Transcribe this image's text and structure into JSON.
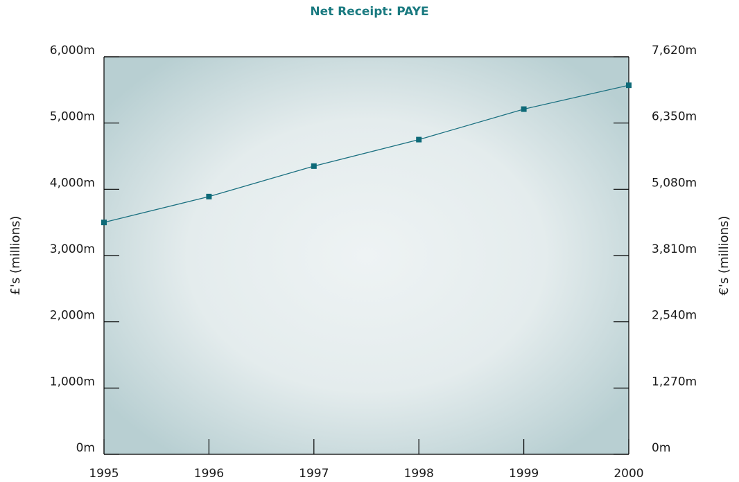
{
  "chart_data": {
    "type": "line",
    "title": "Net Receipt: PAYE",
    "x": [
      "1995",
      "1996",
      "1997",
      "1998",
      "1999",
      "2000"
    ],
    "series": [
      {
        "values": [
          3500,
          3890,
          4350,
          4750,
          5210,
          5570
        ]
      }
    ],
    "ylabel": "£'s (millions)",
    "y2label": "€'s (millions)",
    "ylim": [
      0,
      6000
    ],
    "y2lim": [
      0,
      7620
    ],
    "y_ticks": [
      "0m",
      "1,000m",
      "2,000m",
      "3,000m",
      "4,000m",
      "5,000m",
      "6,000m"
    ],
    "y2_ticks": [
      "0m",
      "1,270m",
      "2,540m",
      "3,810m",
      "5,080m",
      "6,350m",
      "7,620m"
    ],
    "grid": false,
    "colors": {
      "line": "#1a7080",
      "marker": "#0e6a78",
      "plot_center": "#eef3f4",
      "plot_edge": "#b8cfd2",
      "title": "#1a7a80"
    }
  }
}
